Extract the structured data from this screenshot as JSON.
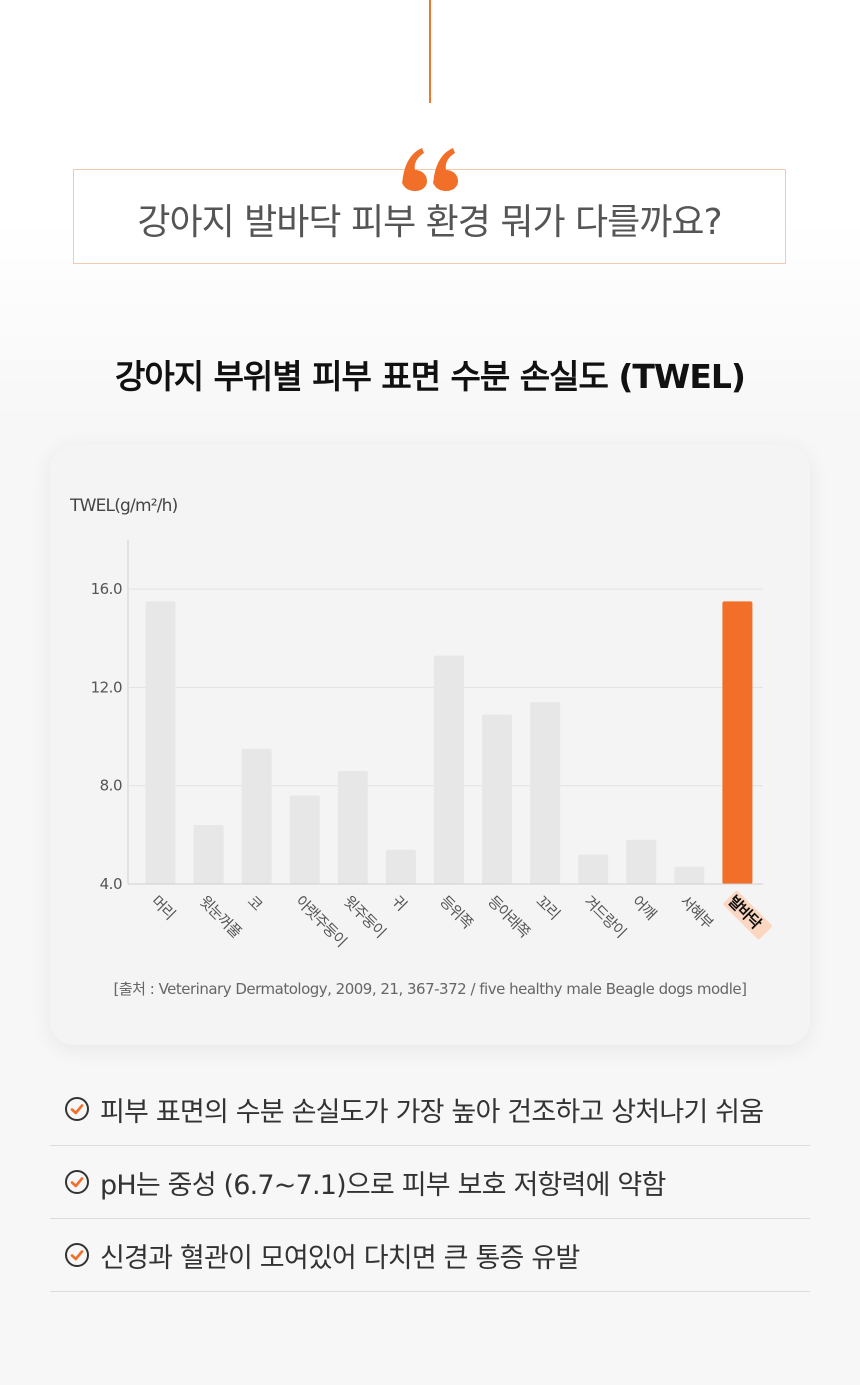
{
  "quote": {
    "text": "강아지 발바닥 피부 환경 뭐가 다를까요?"
  },
  "headline": "강아지 부위별 피부 표면 수분 손실도 (TWEL)",
  "colors": {
    "accent": "#f26f2a",
    "bar": "#e7e7e7",
    "highlight_label_bg": "#fbd7c2"
  },
  "chart_data": {
    "type": "bar",
    "title": "",
    "ylabel": "TWEL(g/m²/h)",
    "xlabel": "",
    "ylim": [
      4.0,
      18.0
    ],
    "yticks": [
      "4.0",
      "8.0",
      "12.0",
      "16.0"
    ],
    "categories": [
      "머리",
      "윗눈꺼풀",
      "코",
      "아랫주둥이",
      "윗주둥이",
      "귀",
      "등위쪽",
      "등아래쪽",
      "꼬리",
      "겨드랑이",
      "어깨",
      "서혜부",
      "발바닥"
    ],
    "values": [
      15.5,
      6.4,
      9.5,
      7.6,
      8.6,
      5.4,
      13.3,
      10.9,
      11.4,
      5.2,
      5.8,
      4.7,
      15.5
    ],
    "highlight": "발바닥",
    "grid": true,
    "source": "[출처 : Veterinary Dermatology, 2009, 21, 367-372 / five healthy male Beagle dogs modle]"
  },
  "bullets": [
    {
      "icon": "check-circle-icon",
      "text": "피부 표면의 수분 손실도가 가장 높아 건조하고 상처나기 쉬움"
    },
    {
      "icon": "check-circle-icon",
      "text": "pH는 중성 (6.7~7.1)으로 피부 보호 저항력에 약함"
    },
    {
      "icon": "check-circle-icon",
      "text": "신경과 혈관이 모여있어 다치면 큰 통증 유발"
    }
  ]
}
